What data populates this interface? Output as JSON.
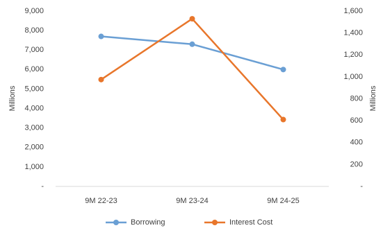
{
  "chart_data": {
    "type": "line",
    "categories": [
      "9M 22-23",
      "9M 23-24",
      "9M 24-25"
    ],
    "series": [
      {
        "name": "Borrowing",
        "axis": "left",
        "color": "#6A9FD4",
        "values": [
          7700,
          7300,
          6000
        ]
      },
      {
        "name": "Interest Cost",
        "axis": "right",
        "color": "#E8762B",
        "values": [
          975,
          1530,
          610
        ]
      }
    ],
    "ylabel_left": "Millions",
    "ylabel_right": "Millions",
    "ylim_left": [
      0,
      9000
    ],
    "ylim_right": [
      0,
      1600
    ],
    "yticks_left": [
      "-",
      "1,000",
      "2,000",
      "3,000",
      "4,000",
      "5,000",
      "6,000",
      "7,000",
      "8,000",
      "9,000"
    ],
    "yticks_right": [
      "-",
      "200",
      "400",
      "600",
      "800",
      "1,000",
      "1,200",
      "1,400",
      "1,600"
    ],
    "grid": false,
    "legend_position": "bottom"
  }
}
